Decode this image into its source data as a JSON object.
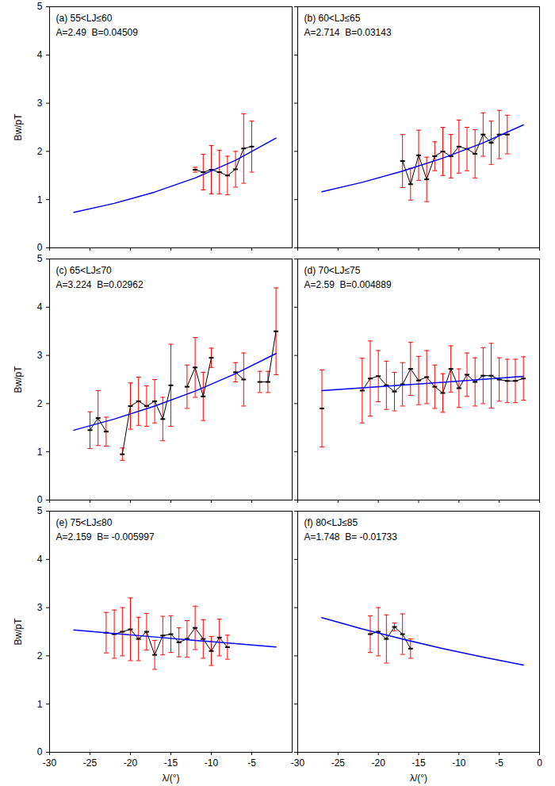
{
  "chart_data": [
    {
      "type": "line",
      "title": "(a) 55<LJ≤60",
      "annotation": "A=2.49  B=0.04509",
      "ylabel": "Bw/pT",
      "tick_labels": "y",
      "xlim": [
        -30,
        0
      ],
      "xticks": [
        -30,
        -25,
        -20,
        -15,
        -10,
        -5
      ],
      "ylim": [
        0,
        5
      ],
      "yticks": [
        0,
        1,
        2,
        3,
        4,
        5
      ],
      "series": [
        {
          "type": "line",
          "color": "#000000",
          "x": [
            -12,
            -11,
            -10,
            -9,
            -8,
            -7,
            -6,
            -5
          ],
          "values": [
            1.62,
            1.57,
            1.62,
            1.57,
            1.5,
            1.63,
            2.06,
            2.1
          ],
          "error_bars": {
            "color": "#ff0000",
            "values": [
              0.05,
              0.37,
              0.5,
              0.45,
              0.4,
              0.37,
              0.72,
              0.53
            ]
          }
        },
        {
          "type": "line",
          "color": "#0000ff",
          "x": [
            -27,
            -22,
            -17,
            -12,
            -7,
            -2
          ],
          "values": [
            0.737,
            0.923,
            1.157,
            1.449,
            1.816,
            2.275
          ]
        }
      ]
    },
    {
      "type": "line",
      "title": "(b) 60<LJ≤65",
      "annotation": "A=2.714  B=0.03143",
      "tick_labels": false,
      "xlim": [
        -30,
        0
      ],
      "xticks": [
        -30,
        -25,
        -20,
        -15,
        -10,
        -5,
        0
      ],
      "ylim": [
        0,
        5
      ],
      "yticks": [
        0,
        1,
        2,
        3,
        4,
        5
      ],
      "series": [
        {
          "type": "line",
          "color": "#000000",
          "x": [
            -17,
            -16,
            -15,
            -14,
            -13,
            -12,
            -11,
            -10,
            -9,
            -8,
            -7,
            -6,
            -5,
            -4
          ],
          "values": [
            1.8,
            1.32,
            1.92,
            1.42,
            1.9,
            2.0,
            1.9,
            2.1,
            2.05,
            1.95,
            2.35,
            2.18,
            2.35,
            2.35
          ],
          "error_bars": {
            "color": "#ff0000",
            "values": [
              0.55,
              0.33,
              0.52,
              0.46,
              0.3,
              0.5,
              0.45,
              0.55,
              0.45,
              0.5,
              0.45,
              0.45,
              0.5,
              0.4
            ]
          }
        },
        {
          "type": "line",
          "color": "#0000ff",
          "x": [
            -27,
            -22,
            -17,
            -12,
            -7,
            -2
          ],
          "values": [
            1.162,
            1.359,
            1.591,
            1.861,
            2.178,
            2.549
          ]
        }
      ]
    },
    {
      "type": "line",
      "title": "(c) 65<LJ≤70",
      "annotation": "A=3.224  B=0.02962",
      "ylabel": "Bw/pT",
      "tick_labels": "y",
      "xlim": [
        -30,
        0
      ],
      "xticks": [
        -30,
        -25,
        -20,
        -15,
        -10,
        -5
      ],
      "ylim": [
        0,
        5
      ],
      "yticks": [
        0,
        1,
        2,
        3,
        4,
        5
      ],
      "series": [
        {
          "type": "line",
          "color": "#000000",
          "x": [
            -25,
            -24,
            -23,
            -22,
            -21,
            -20,
            -19,
            -18,
            -17,
            -16,
            -15,
            -14,
            -13,
            -12,
            -11,
            -10,
            -9,
            -8,
            -7,
            -6,
            -5,
            -4,
            -3,
            -2
          ],
          "values": [
            1.45,
            1.7,
            1.42,
            null,
            0.95,
            1.95,
            2.05,
            1.95,
            2.05,
            1.68,
            2.38,
            null,
            2.35,
            2.75,
            2.15,
            2.95,
            null,
            null,
            2.65,
            2.5,
            null,
            2.45,
            2.45,
            3.5
          ],
          "error_bars": {
            "color": "#ff0000",
            "values": [
              0.38,
              0.57,
              0.3,
              null,
              0.13,
              0.48,
              0.5,
              0.42,
              0.45,
              0.45,
              0.85,
              null,
              0.45,
              0.62,
              0.5,
              0.2,
              null,
              null,
              0.2,
              0.55,
              null,
              0.22,
              0.22,
              0.9
            ]
          }
        },
        {
          "type": "line",
          "color": "#0000ff",
          "x": [
            -27,
            -22,
            -17,
            -12,
            -7,
            -2
          ],
          "values": [
            1.449,
            1.68,
            1.949,
            2.26,
            2.621,
            3.039
          ]
        }
      ]
    },
    {
      "type": "line",
      "title": "(d) 70<LJ≤75",
      "annotation": "A=2.59  B=0.004889",
      "tick_labels": false,
      "xlim": [
        -30,
        0
      ],
      "xticks": [
        -30,
        -25,
        -20,
        -15,
        -10,
        -5,
        0
      ],
      "ylim": [
        0,
        5
      ],
      "yticks": [
        0,
        1,
        2,
        3,
        4,
        5
      ],
      "series": [
        {
          "type": "line",
          "color": "#000000",
          "x": [
            -27,
            -26,
            -25,
            -24,
            -23,
            -22,
            -21,
            -20,
            -19,
            -18,
            -17,
            -16,
            -15,
            -14,
            -13,
            -12,
            -11,
            -10,
            -9,
            -8,
            -7,
            -6,
            -5,
            -4,
            -3,
            -2
          ],
          "values": [
            1.9,
            null,
            null,
            null,
            null,
            2.27,
            2.52,
            2.57,
            2.38,
            2.25,
            2.4,
            2.72,
            2.48,
            2.55,
            2.35,
            2.22,
            2.72,
            2.32,
            2.6,
            2.45,
            2.58,
            2.58,
            2.5,
            2.47,
            2.47,
            2.52
          ],
          "error_bars": {
            "color": "#ff0000",
            "values": [
              0.8,
              null,
              null,
              null,
              null,
              0.67,
              0.78,
              0.53,
              0.5,
              0.4,
              0.45,
              0.55,
              0.5,
              0.55,
              0.45,
              0.4,
              0.48,
              0.4,
              0.45,
              0.5,
              0.58,
              0.67,
              0.45,
              0.45,
              0.45,
              0.45
            ]
          }
        },
        {
          "type": "line",
          "color": "#0000ff",
          "x": [
            -27,
            -22,
            -17,
            -12,
            -7,
            -2
          ],
          "values": [
            2.27,
            2.326,
            2.384,
            2.442,
            2.503,
            2.565
          ]
        }
      ]
    },
    {
      "type": "line",
      "title": "(e) 75<LJ≤80",
      "annotation": "A=2.159  B= -0.005997",
      "ylabel": "Bw/pT",
      "xlabel": "λ/(°)",
      "tick_labels": true,
      "xlim": [
        -30,
        0
      ],
      "xticks": [
        -30,
        -25,
        -20,
        -15,
        -10,
        -5
      ],
      "ylim": [
        0,
        5
      ],
      "yticks": [
        0,
        1,
        2,
        3,
        4,
        5
      ],
      "series": [
        {
          "type": "line",
          "color": "#000000",
          "x": [
            -23,
            -22,
            -21,
            -20,
            -19,
            -18,
            -17,
            -16,
            -15,
            -14,
            -13,
            -12,
            -11,
            -10,
            -9,
            -8
          ],
          "values": [
            2.48,
            2.45,
            2.5,
            2.55,
            2.35,
            2.5,
            2.02,
            2.42,
            2.45,
            2.28,
            2.35,
            2.58,
            2.35,
            2.1,
            2.38,
            2.18
          ],
          "error_bars": {
            "color": "#ff0000",
            "values": [
              0.42,
              0.5,
              0.5,
              0.65,
              0.45,
              0.38,
              0.3,
              0.4,
              0.38,
              0.3,
              0.38,
              0.45,
              0.4,
              0.3,
              0.38,
              0.25
            ]
          }
        },
        {
          "type": "line",
          "color": "#0000ff",
          "x": [
            -27,
            -22,
            -17,
            -12,
            -7,
            -2
          ],
          "values": [
            2.539,
            2.464,
            2.391,
            2.32,
            2.252,
            2.185
          ]
        }
      ]
    },
    {
      "type": "line",
      "title": "(f) 80<LJ≤85",
      "annotation": "A=1.748  B= -0.01733",
      "xlabel": "λ/(°)",
      "tick_labels": "x",
      "xlim": [
        -30,
        0
      ],
      "xticks": [
        -30,
        -25,
        -20,
        -15,
        -10,
        -5,
        0
      ],
      "ylim": [
        0,
        5
      ],
      "yticks": [
        0,
        1,
        2,
        3,
        4,
        5
      ],
      "series": [
        {
          "type": "line",
          "color": "#000000",
          "x": [
            -21,
            -20,
            -19,
            -18,
            -17,
            -16
          ],
          "values": [
            2.45,
            2.5,
            2.35,
            2.6,
            2.45,
            2.15
          ],
          "error_bars": {
            "color": "#ff0000",
            "values": [
              0.38,
              0.5,
              0.5,
              0.08,
              0.42,
              0.2
            ]
          }
        },
        {
          "type": "line",
          "color": "#0000ff",
          "x": [
            -27,
            -22,
            -17,
            -12,
            -7,
            -2
          ],
          "values": [
            2.791,
            2.559,
            2.347,
            2.152,
            1.973,
            1.81
          ]
        }
      ]
    }
  ]
}
